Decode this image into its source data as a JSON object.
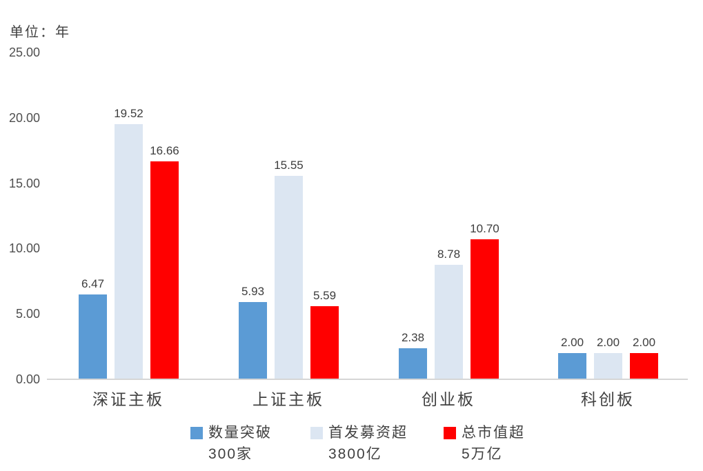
{
  "colors": {
    "series_blue": "#5B9BD5",
    "series_lightblue": "#DCE6F2",
    "series_red": "#FF0000",
    "axis_line": "#D6D6D6",
    "text": "#404040"
  },
  "chart_data": {
    "type": "bar",
    "unit": "单位：年",
    "title": "",
    "xlabel": "",
    "ylabel": "",
    "categories": [
      "深证主板",
      "上证主板",
      "创业板",
      "科创板"
    ],
    "series": [
      {
        "name": "数量突破300家",
        "legend_lines": [
          "数量突破",
          "300家"
        ],
        "color": "#5B9BD5",
        "values": [
          6.47,
          5.93,
          2.38,
          2.0
        ]
      },
      {
        "name": "首发募资超3800亿",
        "legend_lines": [
          "首发募资超",
          "3800亿"
        ],
        "color": "#DCE6F2",
        "values": [
          19.52,
          15.55,
          8.78,
          2.0
        ]
      },
      {
        "name": "总市值超5万亿",
        "legend_lines": [
          "总市值超",
          "5万亿"
        ],
        "color": "#FF0000",
        "values": [
          16.66,
          5.59,
          10.7,
          2.0
        ]
      }
    ],
    "value_labels": [
      [
        "6.47",
        "5.93",
        "2.38",
        "2.00"
      ],
      [
        "19.52",
        "15.55",
        "8.78",
        "2.00"
      ],
      [
        "16.66",
        "5.59",
        "10.70",
        "2.00"
      ]
    ],
    "yticks": [
      0,
      5,
      10,
      15,
      20,
      25
    ],
    "ytick_labels": [
      "0.00",
      "5.00",
      "10.00",
      "15.00",
      "20.00",
      "25.00"
    ],
    "ylim": [
      0,
      25
    ],
    "grid": false,
    "legend_position": "bottom"
  }
}
